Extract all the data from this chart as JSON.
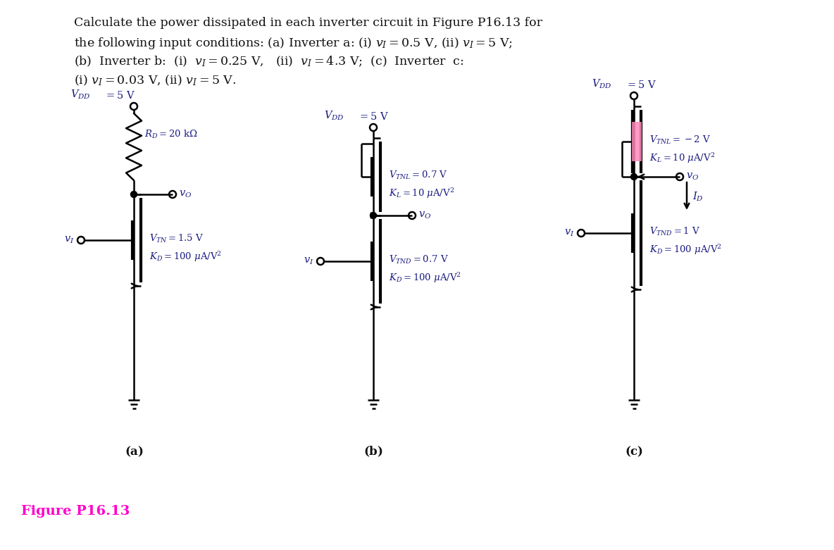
{
  "figure_label": "Figure P16.13",
  "figure_label_color": "#FF00CC",
  "bg_color": "#ffffff",
  "circuit_color": "#000000",
  "label_color": "#1a1a80",
  "title_lines": [
    "Calculate the power dissipated in each inverter circuit in Figure P16.13 for",
    "the following input conditions: (a) Inverter a: (i) $v_I = 0.5$ V, (ii) $v_I = 5$ V;",
    "(b)  Inverter b:  (i)  $v_I = 0.25$ V,   (ii)  $v_I = 4.3$ V;  (c)  Inverter  c:",
    "(i) $v_I = 0.03$ V, (ii) $v_I = 5$ V."
  ]
}
